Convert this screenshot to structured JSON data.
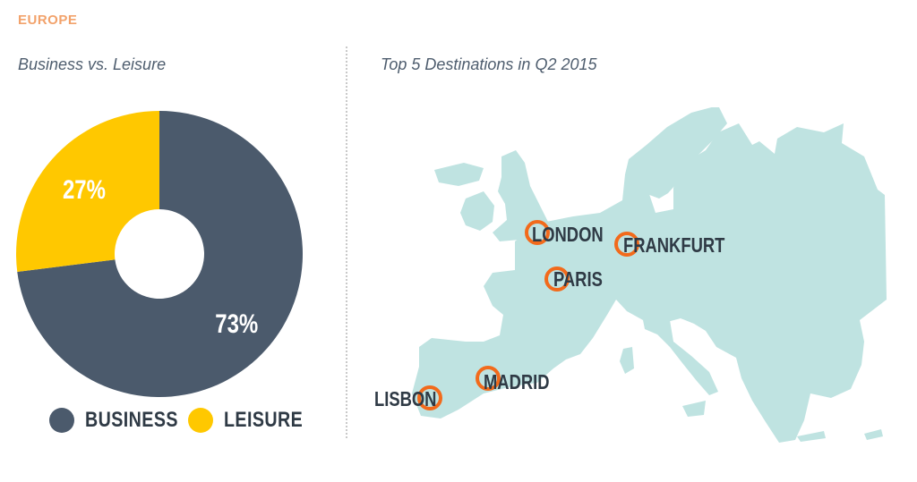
{
  "header": {
    "region": "EUROPE"
  },
  "colors": {
    "region": "#F2A26B",
    "title": "#4E5D6E",
    "business": "#4B5A6C",
    "leisure": "#FFC800",
    "map_land": "#BFE3E1",
    "marker": "#F26A1B",
    "label": "#2F3A45",
    "pct_text": "#FFFFFF"
  },
  "chart_data": [
    {
      "type": "pie",
      "title": "Business vs. Leisure",
      "categories": [
        "BUSINESS",
        "LEISURE"
      ],
      "values": [
        73,
        27
      ],
      "value_labels": [
        "73%",
        "27%"
      ],
      "donut": true,
      "legend": "bottom"
    }
  ],
  "map": {
    "title": "Top 5 Destinations in Q2 2015",
    "marker_icon": "circle-marker-icon",
    "destinations": [
      {
        "name": "LONDON"
      },
      {
        "name": "FRANKFURT"
      },
      {
        "name": "PARIS"
      },
      {
        "name": "MADRID"
      },
      {
        "name": "LISBON"
      }
    ]
  }
}
